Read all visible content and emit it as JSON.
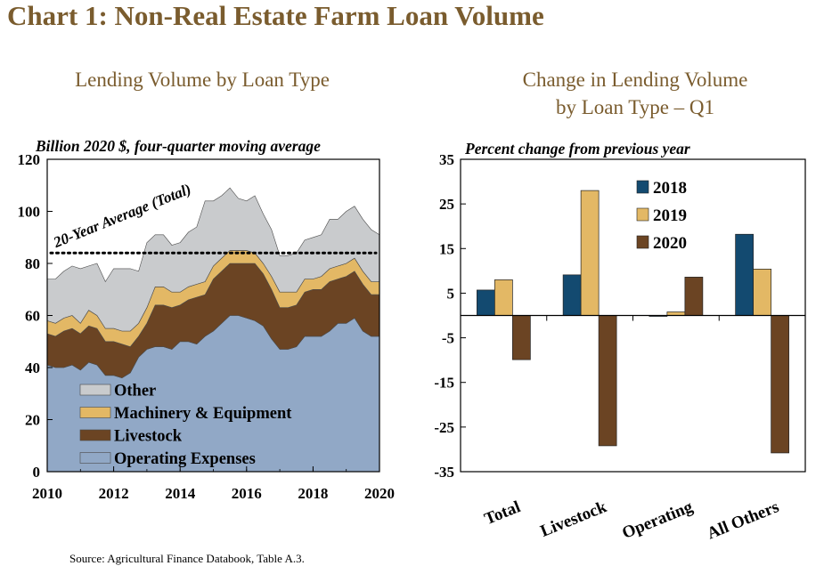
{
  "title": "Chart 1: Non-Real Estate Farm Loan Volume",
  "source": "Source: Agricultural Finance Databook, Table A.3.",
  "colors": {
    "title": "#7a5c2e",
    "operating": "#91a8c6",
    "livestock": "#6b4423",
    "machinery": "#e3b865",
    "other": "#c9cbcd",
    "bar2018": "#134a70",
    "bar2019": "#e3b865",
    "bar2020": "#6b4423"
  },
  "chart_data": [
    {
      "type": "area",
      "title": "Lending Volume by Loan Type",
      "subtitle": "Billion 2020 $, four-quarter moving average",
      "xlim": [
        2010,
        2020
      ],
      "ylim": [
        0,
        120
      ],
      "x_ticks": [
        "2010",
        "2012",
        "2014",
        "2016",
        "2018",
        "2020"
      ],
      "y_ticks": [
        "0",
        "20",
        "40",
        "60",
        "80",
        "100",
        "120"
      ],
      "stacked": true,
      "x": [
        2010,
        2010.25,
        2010.5,
        2010.75,
        2011,
        2011.25,
        2011.5,
        2011.75,
        2012,
        2012.25,
        2012.5,
        2012.75,
        2013,
        2013.25,
        2013.5,
        2013.75,
        2014,
        2014.25,
        2014.5,
        2014.75,
        2015,
        2015.25,
        2015.5,
        2015.75,
        2016,
        2016.25,
        2016.5,
        2016.75,
        2017,
        2017.25,
        2017.5,
        2017.75,
        2018,
        2018.25,
        2018.5,
        2018.75,
        2019,
        2019.25,
        2019.5,
        2019.75,
        2020
      ],
      "series": [
        {
          "name": "Operating Expenses",
          "color": "#91a8c6",
          "values": [
            41,
            40,
            40,
            41,
            39,
            42,
            41,
            37,
            37,
            36,
            38,
            44,
            47,
            48,
            48,
            47,
            50,
            50,
            49,
            52,
            54,
            57,
            60,
            60,
            59,
            58,
            56,
            51,
            47,
            47,
            48,
            52,
            52,
            52,
            54,
            57,
            57,
            59,
            54,
            52,
            52
          ]
        },
        {
          "name": "Livestock",
          "color": "#6b4423",
          "values": [
            12,
            12,
            14,
            14,
            14,
            14,
            14,
            13,
            13,
            13,
            10,
            8,
            10,
            16,
            16,
            16,
            14,
            16,
            18,
            16,
            20,
            20,
            20,
            20,
            21,
            22,
            20,
            19,
            16,
            16,
            16,
            17,
            18,
            18,
            19,
            17,
            18,
            18,
            18,
            16,
            16
          ]
        },
        {
          "name": "Machinery & Equipment",
          "color": "#e3b865",
          "values": [
            5,
            5,
            5,
            5,
            4,
            6,
            5,
            5,
            5,
            5,
            6,
            5,
            6,
            7,
            7,
            6,
            5,
            5,
            5,
            5,
            5,
            5,
            5,
            5,
            5,
            4,
            4,
            5,
            6,
            6,
            5,
            5,
            4,
            5,
            5,
            5,
            5,
            5,
            5,
            5,
            5
          ]
        },
        {
          "name": "Other",
          "color": "#c9cbcd",
          "values": [
            16,
            17,
            18,
            19,
            21,
            17,
            20,
            18,
            23,
            24,
            24,
            20,
            25,
            20,
            20,
            18,
            19,
            21,
            22,
            31,
            25,
            24,
            24,
            20,
            19,
            22,
            19,
            18,
            14,
            14,
            15,
            15,
            16,
            16,
            19,
            18,
            20,
            20,
            20,
            20,
            18
          ]
        }
      ],
      "reference_line": {
        "label": "20-Year Average (Total)",
        "value": 84
      },
      "legend": [
        "Other",
        "Machinery & Equipment",
        "Livestock",
        "Operating Expenses"
      ],
      "legend_position": "bottom-left"
    },
    {
      "type": "bar",
      "title": "Change in Lending Volume by Loan Type – Q1",
      "title_lines": [
        "Change in Lending Volume",
        "by Loan Type – Q1"
      ],
      "subtitle": "Percent change from previous year",
      "categories": [
        "Total",
        "Livestock",
        "Operating",
        "All Others"
      ],
      "ylim": [
        -35,
        35
      ],
      "y_ticks": [
        "35",
        "25",
        "15",
        "5",
        "-5",
        "-15",
        "-25",
        "-35"
      ],
      "series": [
        {
          "name": "2018",
          "color": "#134a70",
          "values": [
            5.7,
            9.1,
            -0.2,
            18.2
          ]
        },
        {
          "name": "2019",
          "color": "#e3b865",
          "values": [
            8.0,
            28.0,
            0.8,
            10.4
          ]
        },
        {
          "name": "2020",
          "color": "#6b4423",
          "values": [
            -9.9,
            -29.2,
            8.6,
            -30.8
          ]
        }
      ],
      "legend_position": "top-left"
    }
  ]
}
